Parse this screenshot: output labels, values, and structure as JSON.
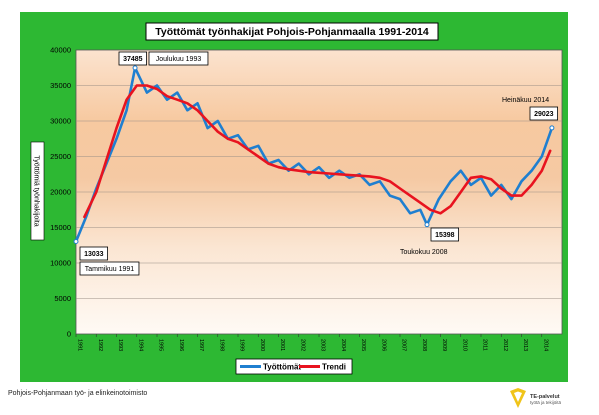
{
  "footer_text": "Pohjois-Pohjanmaan työ- ja elinkeinotoimisto",
  "logo": {
    "name": "TE-palvelut",
    "tagline": "työtä ja tekijöitä",
    "color": "#f0c419"
  },
  "colors": {
    "frame": "#2db833",
    "series": "#1f7fd0",
    "trend": "#e8131f"
  },
  "chart_data": {
    "type": "line",
    "title": "Työttömät työnhakijat Pohjois-Pohjanmaalla 1991-2014",
    "ylabel": "Työttömiä työnhakijoita",
    "xlabel": "",
    "ylim": [
      0,
      40000
    ],
    "yticks": [
      0,
      5000,
      10000,
      15000,
      20000,
      25000,
      30000,
      35000,
      40000
    ],
    "x_tick_labels": [
      "1991",
      "1992",
      "1993",
      "1994",
      "1995",
      "1996",
      "1997",
      "1998",
      "1999",
      "2000",
      "2001",
      "2002",
      "2003",
      "2004",
      "2005",
      "2006",
      "2007",
      "2008",
      "2009",
      "2010",
      "2011",
      "2012",
      "2013",
      "2014"
    ],
    "grid": true,
    "legend": {
      "position": "bottom",
      "entries": [
        "Työttömät",
        "Trendi"
      ]
    },
    "series": [
      {
        "name": "Työttömät",
        "x": [
          "1991-01",
          "1991-07",
          "1992-01",
          "1992-07",
          "1993-01",
          "1993-07",
          "1993-12",
          "1994-07",
          "1995-01",
          "1995-07",
          "1996-01",
          "1996-07",
          "1997-01",
          "1997-07",
          "1998-01",
          "1998-07",
          "1999-01",
          "1999-07",
          "2000-01",
          "2000-07",
          "2001-01",
          "2001-07",
          "2002-01",
          "2002-07",
          "2003-01",
          "2003-07",
          "2004-01",
          "2004-07",
          "2005-01",
          "2005-07",
          "2006-01",
          "2006-07",
          "2007-01",
          "2007-07",
          "2008-01",
          "2008-05",
          "2008-12",
          "2009-07",
          "2010-01",
          "2010-07",
          "2011-01",
          "2011-07",
          "2012-01",
          "2012-07",
          "2013-01",
          "2013-07",
          "2014-01",
          "2014-07"
        ],
        "values": [
          13033,
          16500,
          20500,
          24000,
          27500,
          31500,
          37485,
          34000,
          35000,
          33000,
          34000,
          31500,
          32500,
          29000,
          30000,
          27500,
          28000,
          26000,
          26500,
          24000,
          24500,
          23000,
          24000,
          22500,
          23500,
          22000,
          23000,
          22000,
          22500,
          21000,
          21500,
          19500,
          19000,
          17000,
          17500,
          15398,
          19000,
          21500,
          23000,
          21000,
          22000,
          19500,
          21000,
          19000,
          21500,
          23000,
          25000,
          29023
        ]
      },
      {
        "name": "Trendi",
        "x": [
          "1991-06",
          "1992-01",
          "1992-07",
          "1993-01",
          "1993-07",
          "1994-01",
          "1994-07",
          "1995-01",
          "1995-07",
          "1996-01",
          "1996-07",
          "1997-01",
          "1997-07",
          "1998-01",
          "1998-07",
          "1999-01",
          "1999-07",
          "2000-01",
          "2000-07",
          "2001-01",
          "2001-07",
          "2002-01",
          "2002-07",
          "2003-01",
          "2003-07",
          "2004-01",
          "2004-07",
          "2005-01",
          "2005-07",
          "2006-01",
          "2006-07",
          "2007-01",
          "2007-07",
          "2008-01",
          "2008-07",
          "2009-01",
          "2009-07",
          "2010-01",
          "2010-07",
          "2011-01",
          "2011-07",
          "2012-01",
          "2012-07",
          "2013-01",
          "2013-07",
          "2014-01",
          "2014-06"
        ],
        "values": [
          16500,
          20000,
          24500,
          29000,
          33000,
          35000,
          35000,
          34500,
          33500,
          33000,
          32500,
          31500,
          30000,
          28500,
          27500,
          27000,
          26000,
          25000,
          24000,
          23500,
          23200,
          23000,
          22800,
          22700,
          22600,
          22500,
          22400,
          22300,
          22200,
          22000,
          21500,
          20500,
          19500,
          18500,
          17500,
          17000,
          18000,
          20000,
          22000,
          22200,
          21800,
          20500,
          19500,
          19500,
          21000,
          23000,
          25800
        ]
      }
    ],
    "annotations": [
      {
        "value_label": "37485",
        "text": "Joulukuu 1993",
        "x": "1993-12",
        "y": 37485
      },
      {
        "value_label": "13033",
        "text": "Tammikuu 1991",
        "x": "1991-01",
        "y": 13033
      },
      {
        "value_label": "15398",
        "text": "Toukokuu 2008",
        "x": "2008-05",
        "y": 15398
      },
      {
        "value_label": "29023",
        "text": "Heinäkuu 2014",
        "x": "2014-07",
        "y": 29023
      }
    ]
  }
}
